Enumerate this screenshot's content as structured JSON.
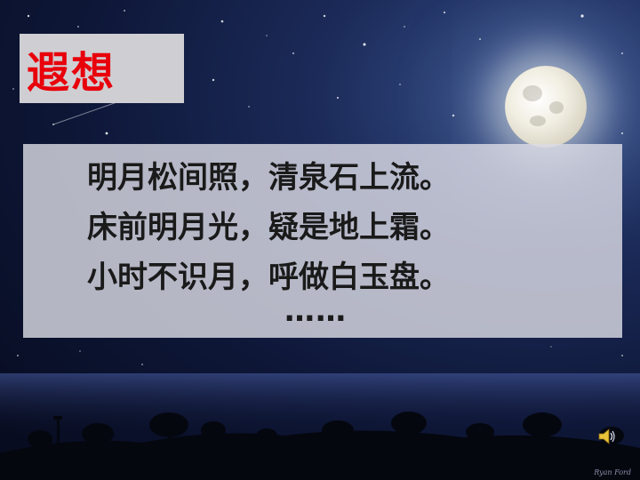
{
  "slide": {
    "title": "遐想",
    "poem_lines": [
      "明月松间照，清泉石上流。",
      "床前明月光，疑是地上霜。",
      "小时不识月，呼做白玉盘。",
      "……"
    ],
    "credit": "Ryan Ford"
  },
  "colors": {
    "title_text": "#e8000b",
    "title_box": "#cfcfd3",
    "poem_text": "#1a1a1a",
    "sky": "#0e1738"
  },
  "icons": {
    "audio": "speaker-icon"
  }
}
